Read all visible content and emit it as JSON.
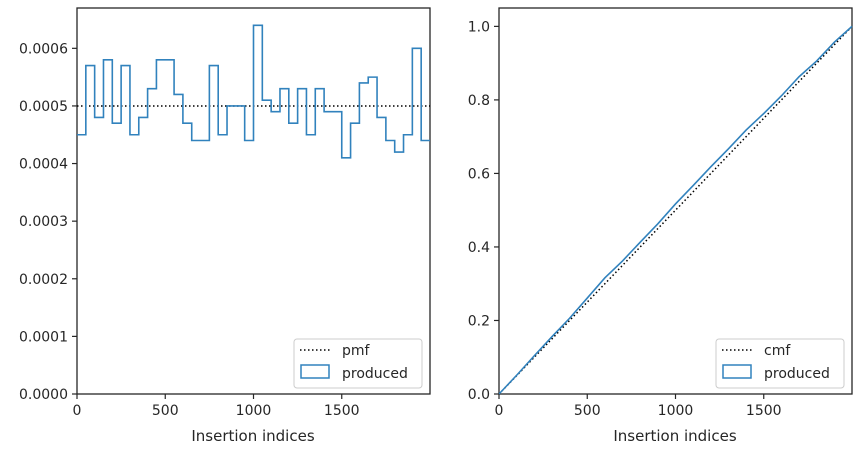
{
  "colors": {
    "series": "#3182bd",
    "reference": "#000000",
    "axes": "#262626",
    "legend_border": "#cccccc"
  },
  "chart_data": [
    {
      "type": "step-histogram",
      "xlabel": "Insertion indices",
      "ylabel": "",
      "xlim": [
        0,
        2000
      ],
      "ylim": [
        0,
        0.00067
      ],
      "x_ticks": [
        0,
        500,
        1000,
        1500
      ],
      "x_tick_labels": [
        "0",
        "500",
        "1000",
        "1500"
      ],
      "y_ticks": [
        0,
        0.0001,
        0.0002,
        0.0003,
        0.0004,
        0.0005,
        0.0006
      ],
      "y_tick_labels": [
        "0.0000",
        "0.0001",
        "0.0002",
        "0.0003",
        "0.0004",
        "0.0005",
        "0.0006"
      ],
      "grid": false,
      "legend_position": "lower right",
      "series": [
        {
          "name": "pmf",
          "style": "dotted",
          "x": [
            0,
            2000
          ],
          "values": [
            0.0005,
            0.0005
          ]
        },
        {
          "name": "produced",
          "style": "step",
          "bin_edges": [
            0,
            50,
            100,
            150,
            200,
            250,
            300,
            350,
            400,
            450,
            500,
            550,
            600,
            650,
            700,
            750,
            800,
            850,
            900,
            950,
            1000,
            1050,
            1100,
            1150,
            1200,
            1250,
            1300,
            1350,
            1400,
            1450,
            1500,
            1550,
            1600,
            1650,
            1700,
            1750,
            1800,
            1850,
            1900,
            1950,
            2000
          ],
          "values": [
            0.00045,
            0.00057,
            0.00048,
            0.00058,
            0.00047,
            0.00057,
            0.00045,
            0.00048,
            0.00053,
            0.00058,
            0.00058,
            0.00052,
            0.00047,
            0.00044,
            0.00044,
            0.00057,
            0.00045,
            0.0005,
            0.0005,
            0.00044,
            0.00064,
            0.00051,
            0.00049,
            0.00053,
            0.00047,
            0.00053,
            0.00045,
            0.00053,
            0.00049,
            0.00049,
            0.00041,
            0.00047,
            0.00054,
            0.00055,
            0.00048,
            0.00044,
            0.00042,
            0.00045,
            0.0006,
            0.00044
          ]
        }
      ]
    },
    {
      "type": "line",
      "xlabel": "Insertion indices",
      "ylabel": "",
      "xlim": [
        0,
        2000
      ],
      "ylim": [
        0,
        1.05
      ],
      "x_ticks": [
        0,
        500,
        1000,
        1500
      ],
      "x_tick_labels": [
        "0",
        "500",
        "1000",
        "1500"
      ],
      "y_ticks": [
        0,
        0.2,
        0.4,
        0.6,
        0.8,
        1.0
      ],
      "y_tick_labels": [
        "0.0",
        "0.2",
        "0.4",
        "0.6",
        "0.8",
        "1.0"
      ],
      "grid": false,
      "legend_position": "lower right",
      "series": [
        {
          "name": "cmf",
          "style": "dotted",
          "x": [
            0,
            2000
          ],
          "values": [
            0,
            1.0
          ]
        },
        {
          "name": "produced",
          "style": "step",
          "x": [
            0,
            100,
            200,
            300,
            400,
            500,
            600,
            700,
            800,
            900,
            1000,
            1100,
            1200,
            1300,
            1400,
            1500,
            1600,
            1700,
            1800,
            1900,
            2000
          ],
          "values": [
            0,
            0.051,
            0.104,
            0.156,
            0.206,
            0.261,
            0.316,
            0.362,
            0.413,
            0.463,
            0.517,
            0.567,
            0.618,
            0.667,
            0.718,
            0.763,
            0.811,
            0.863,
            0.906,
            0.957,
            1.0
          ]
        }
      ]
    }
  ]
}
